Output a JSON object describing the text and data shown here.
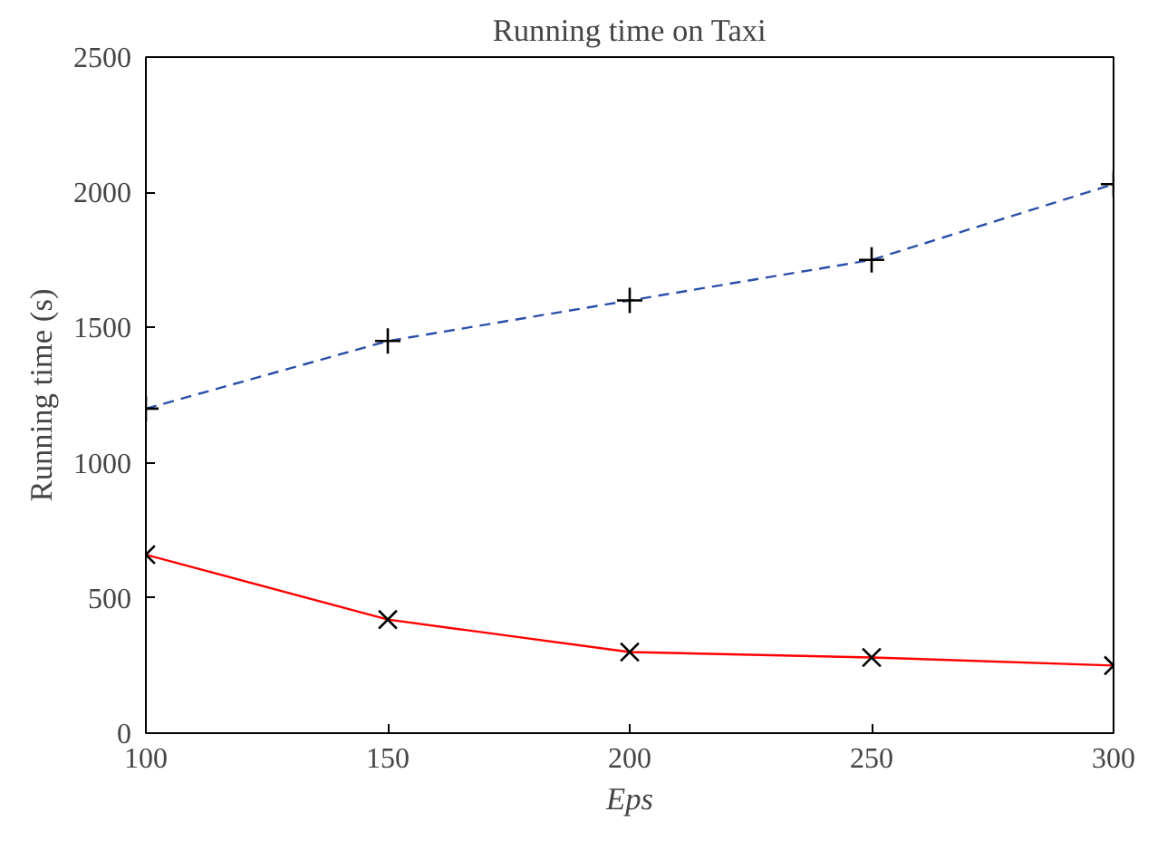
{
  "chart_data": {
    "type": "line",
    "title": "Running time on Taxi",
    "xlabel": "Eps",
    "ylabel": "Running time (s)",
    "x": [
      100,
      150,
      200,
      250,
      300
    ],
    "series": [
      {
        "color": "#2b4fa8",
        "values": [
          1200,
          1450,
          1600,
          1750,
          2030
        ],
        "line_style": "dashed",
        "marker": "cross"
      },
      {
        "color": "#ff0000",
        "values": [
          660,
          420,
          300,
          280,
          250
        ],
        "line_style": "solid",
        "marker": "x"
      }
    ],
    "xlim": [
      100,
      300
    ],
    "ylim": [
      0,
      2500
    ],
    "xticks": [
      100,
      150,
      200,
      250,
      300
    ],
    "yticks": [
      0,
      500,
      1000,
      1500,
      2000,
      2500
    ],
    "grid": false
  }
}
